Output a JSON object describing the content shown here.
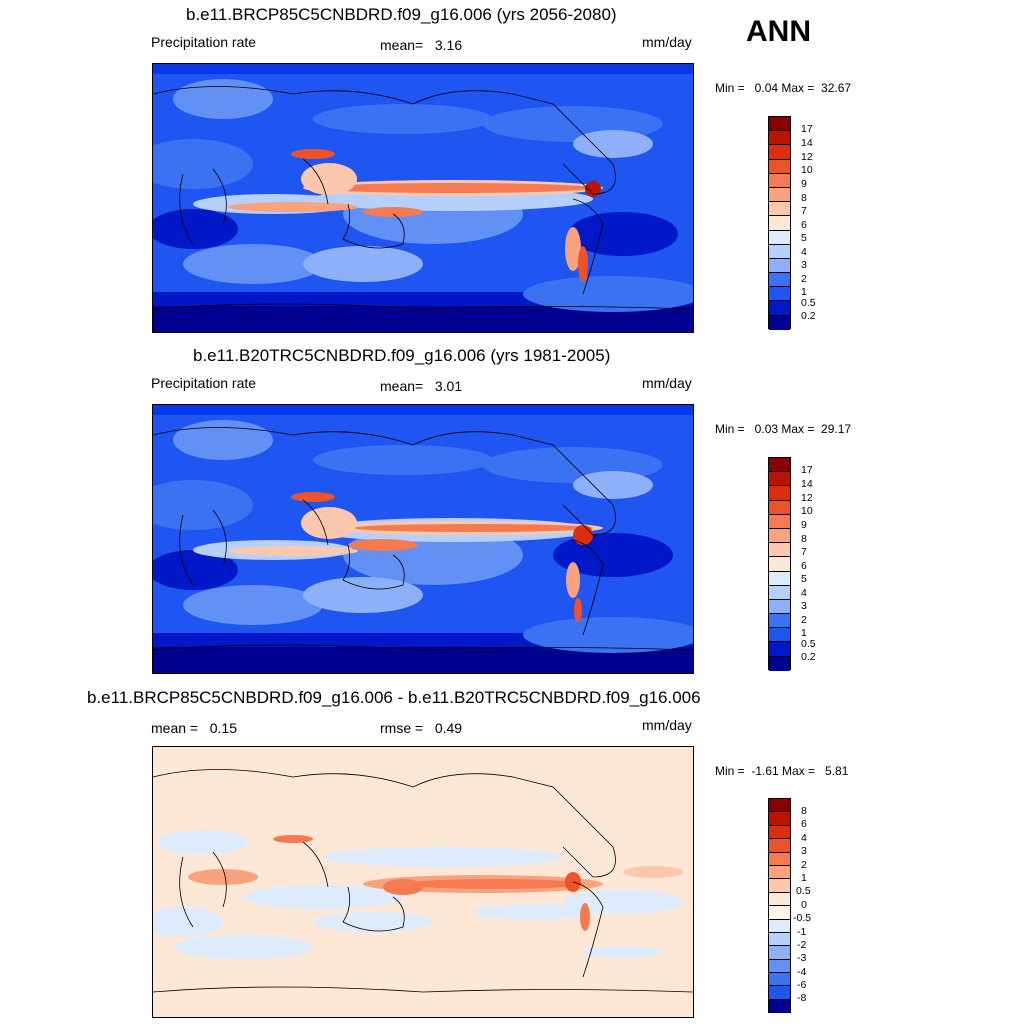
{
  "season": "ANN",
  "colors": {
    "precip_scale": [
      "#000090",
      "#0018c8",
      "#0a38e8",
      "#1f55f0",
      "#3b72f2",
      "#6390f5",
      "#8db0f8",
      "#b7d0fb",
      "#deebfd",
      "#fde8d8",
      "#fbc8ad",
      "#f9a37e",
      "#f57a52",
      "#ee5228",
      "#dc2e0c",
      "#b81400",
      "#8a0000"
    ],
    "diff_scale": [
      "#000090",
      "#0018c8",
      "#0a38e8",
      "#1f55f0",
      "#3b72f2",
      "#6390f5",
      "#8db0f8",
      "#b7d0fb",
      "#deebfd",
      "#fdf3ea",
      "#fde8d8",
      "#fbc8ad",
      "#f9a37e",
      "#f57a52",
      "#ee5228",
      "#dc2e0c",
      "#b81400",
      "#8a0000"
    ]
  },
  "panels": [
    {
      "title": "b.e11.BRCP85C5CNBDRD.f09_g16.006 (yrs 2056-2080)",
      "left_label": "Precipitation rate",
      "center_label": "mean=   3.16",
      "units": "mm/day",
      "minmax": "Min =   0.04 Max =  32.67",
      "levels": [
        "17",
        "14",
        "12",
        "10",
        "9",
        "8",
        "7",
        "6",
        "5",
        "4",
        "3",
        "2",
        "1",
        "0.5",
        "0.2"
      ]
    },
    {
      "title": "b.e11.B20TRC5CNBDRD.f09_g16.006 (yrs 1981-2005)",
      "left_label": "Precipitation rate",
      "center_label": "mean=   3.01",
      "units": "mm/day",
      "minmax": "Min =   0.03 Max =  29.17",
      "levels": [
        "17",
        "14",
        "12",
        "10",
        "9",
        "8",
        "7",
        "6",
        "5",
        "4",
        "3",
        "2",
        "1",
        "0.5",
        "0.2"
      ]
    },
    {
      "title": "b.e11.BRCP85C5CNBDRD.f09_g16.006 - b.e11.B20TRC5CNBDRD.f09_g16.006",
      "left_label": "mean =   0.15",
      "center_label": "rmse =   0.49",
      "units": "mm/day",
      "minmax": "Min =  -1.61 Max =   5.81",
      "levels": [
        "8",
        "6",
        "4",
        "3",
        "2",
        "1",
        "0.5",
        "0",
        "-0.5",
        "-1",
        "-2",
        "-3",
        "-4",
        "-6",
        "-8"
      ]
    }
  ]
}
